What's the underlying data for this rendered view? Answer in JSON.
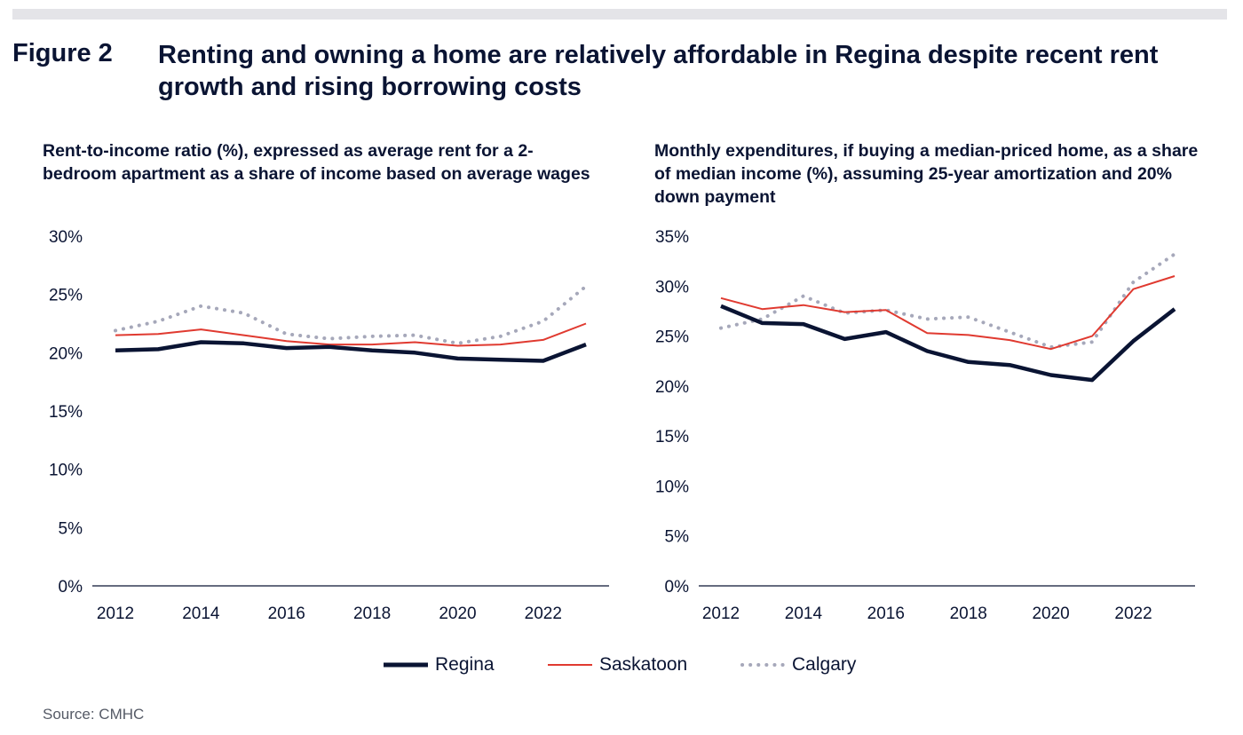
{
  "figure": {
    "label": "Figure 2",
    "title": "Renting and owning a home are relatively affordable in Regina despite recent rent growth and rising borrowing costs"
  },
  "source": "Source: CMHC",
  "legend": [
    {
      "name": "Regina",
      "color": "#0a1433",
      "style": "solid-thick"
    },
    {
      "name": "Saskatoon",
      "color": "#e03a30",
      "style": "solid-thin"
    },
    {
      "name": "Calgary",
      "color": "#a6a8ba",
      "style": "dotted"
    }
  ],
  "chart_data": [
    {
      "type": "line",
      "title": "Rent-to-income ratio (%), expressed as average rent for a 2-bedroom apartment as a share of income based on average wages",
      "x": [
        2012,
        2013,
        2014,
        2015,
        2016,
        2017,
        2018,
        2019,
        2020,
        2021,
        2022,
        2023
      ],
      "x_ticks": [
        "2012",
        "2014",
        "2016",
        "2018",
        "2020",
        "2022"
      ],
      "y_ticks": [
        "0%",
        "5%",
        "10%",
        "15%",
        "20%",
        "25%",
        "30%"
      ],
      "ylim": [
        0,
        30
      ],
      "grid": false,
      "series": [
        {
          "name": "Regina",
          "values": [
            20.2,
            20.3,
            20.9,
            20.8,
            20.4,
            20.5,
            20.2,
            20.0,
            19.5,
            19.4,
            19.3,
            20.7
          ]
        },
        {
          "name": "Saskatoon",
          "values": [
            21.5,
            21.6,
            22.0,
            21.5,
            21.0,
            20.7,
            20.7,
            20.9,
            20.6,
            20.7,
            21.1,
            22.5
          ]
        },
        {
          "name": "Calgary",
          "values": [
            21.9,
            22.7,
            24.0,
            23.4,
            21.6,
            21.2,
            21.4,
            21.5,
            20.8,
            21.4,
            22.7,
            25.7
          ]
        }
      ]
    },
    {
      "type": "line",
      "title": "Monthly expenditures, if buying a median-priced home, as a share of median income (%), assuming 25-year amortization and 20% down payment",
      "x": [
        2012,
        2013,
        2014,
        2015,
        2016,
        2017,
        2018,
        2019,
        2020,
        2021,
        2022,
        2023
      ],
      "x_ticks": [
        "2012",
        "2014",
        "2016",
        "2018",
        "2020",
        "2022"
      ],
      "y_ticks": [
        "0%",
        "5%",
        "10%",
        "15%",
        "20%",
        "25%",
        "30%",
        "35%"
      ],
      "ylim": [
        0,
        35
      ],
      "grid": false,
      "series": [
        {
          "name": "Regina",
          "values": [
            28.0,
            26.3,
            26.2,
            24.7,
            25.4,
            23.5,
            22.4,
            22.1,
            21.1,
            20.6,
            24.5,
            27.7
          ]
        },
        {
          "name": "Saskatoon",
          "values": [
            28.8,
            27.7,
            28.1,
            27.4,
            27.6,
            25.3,
            25.1,
            24.6,
            23.7,
            25.0,
            29.7,
            31.0
          ]
        },
        {
          "name": "Calgary",
          "values": [
            25.8,
            26.7,
            29.0,
            27.3,
            27.6,
            26.7,
            26.9,
            25.4,
            23.9,
            24.4,
            30.4,
            33.2
          ]
        }
      ]
    }
  ]
}
